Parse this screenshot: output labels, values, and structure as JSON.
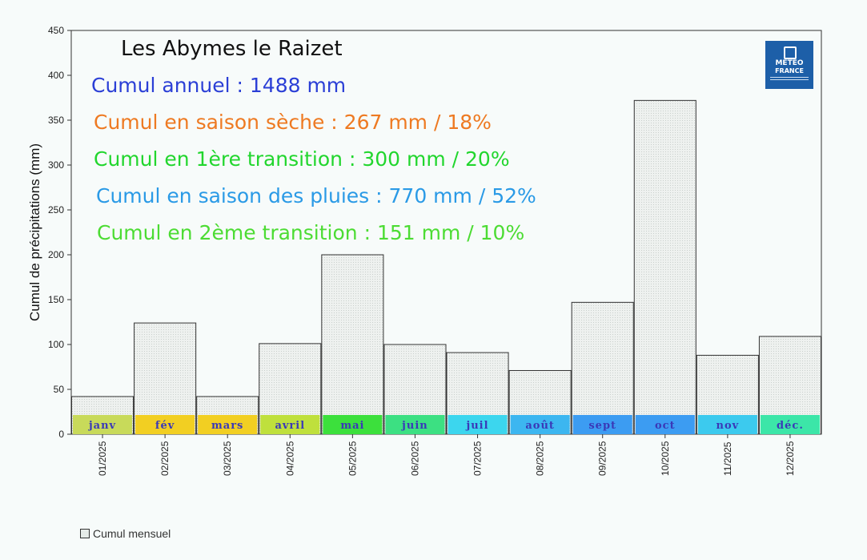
{
  "header": {
    "title": "Les Abymes le Raizet",
    "annotations": [
      {
        "text": "Cumul annuel : 1488 mm",
        "color": "#2b3fd6"
      },
      {
        "text": "Cumul en saison sèche : 267 mm / 18%",
        "color": "#ee7a22"
      },
      {
        "text": "Cumul en 1ère transition : 300 mm / 20%",
        "color": "#22d62e"
      },
      {
        "text": "Cumul en saison des pluies : 770 mm / 52%",
        "color": "#2a9ae6"
      },
      {
        "text": "Cumul en 2ème transition : 151 mm / 10%",
        "color": "#4cdc33"
      }
    ]
  },
  "logo": {
    "line1": "METEO",
    "line2": "FRANCE"
  },
  "legend": {
    "label": "Cumul mensuel"
  },
  "chart_data": {
    "type": "bar",
    "ylabel": "Cumul de précipitations (mm)",
    "ylim": [
      0,
      450
    ],
    "yticks": [
      0,
      50,
      100,
      150,
      200,
      250,
      300,
      350,
      400,
      450
    ],
    "grid": false,
    "legend_position": "bottom-left",
    "categories": [
      "01/2025",
      "02/2025",
      "03/2025",
      "04/2025",
      "05/2025",
      "06/2025",
      "07/2025",
      "08/2025",
      "09/2025",
      "10/2025",
      "11/2025",
      "12/2025"
    ],
    "series": [
      {
        "name": "Cumul mensuel",
        "values": [
          42,
          124,
          42,
          101,
          200,
          100,
          91,
          71,
          147,
          372,
          88,
          109
        ]
      }
    ],
    "month_bands": [
      {
        "label": "janv",
        "color": "#c8da5a"
      },
      {
        "label": "fév",
        "color": "#f2cf22"
      },
      {
        "label": "mars",
        "color": "#f2cf22"
      },
      {
        "label": "avril",
        "color": "#bfe03c"
      },
      {
        "label": "mai",
        "color": "#3ce03c"
      },
      {
        "label": "juin",
        "color": "#3ce082"
      },
      {
        "label": "juil",
        "color": "#3cd6ee"
      },
      {
        "label": "août",
        "color": "#3cb6f0"
      },
      {
        "label": "sept",
        "color": "#3c9cf2"
      },
      {
        "label": "oct",
        "color": "#3c9cf2"
      },
      {
        "label": "nov",
        "color": "#3ccaee"
      },
      {
        "label": "déc.",
        "color": "#3ce6a8"
      }
    ]
  }
}
